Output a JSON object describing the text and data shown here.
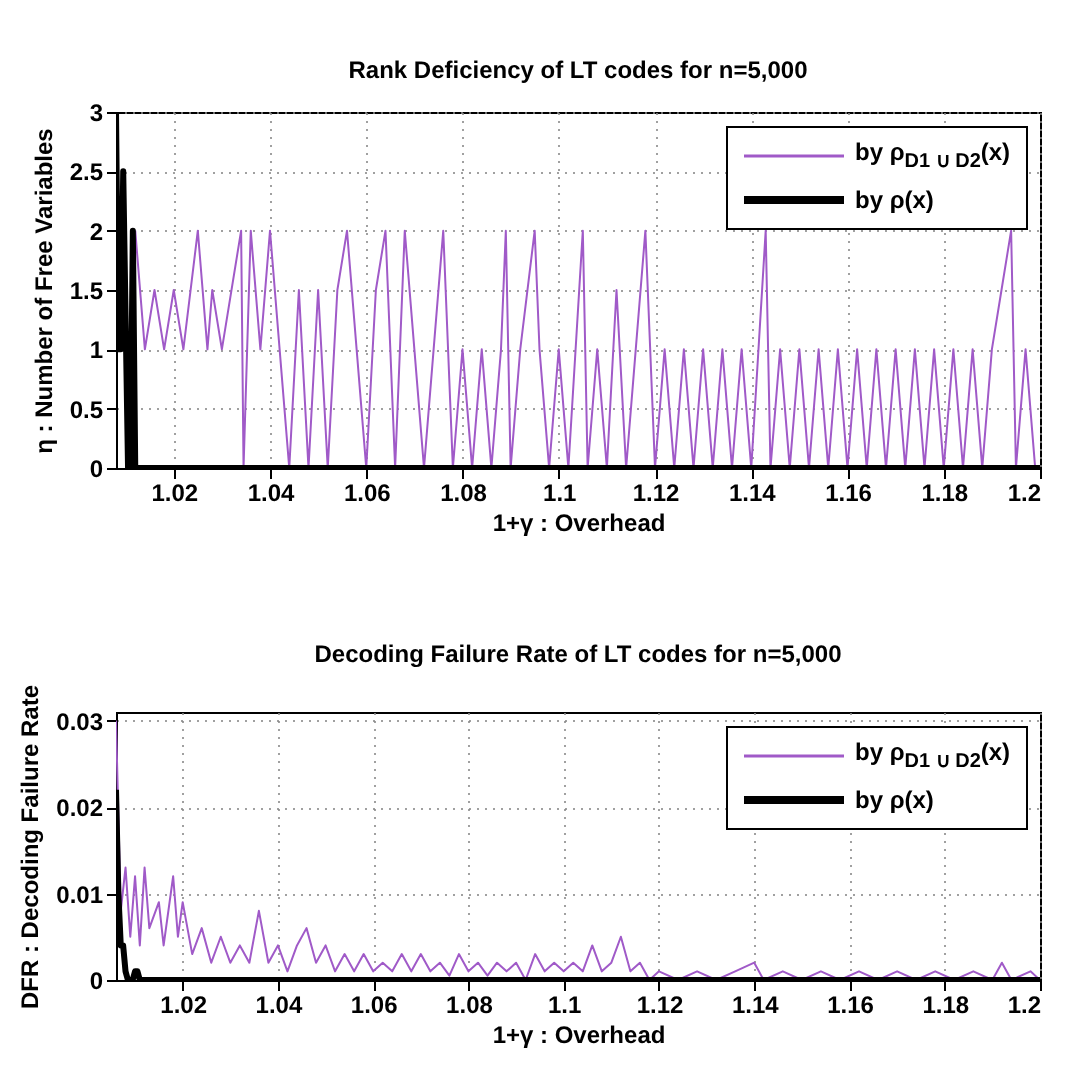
{
  "chart_data": [
    {
      "type": "line",
      "title": "Rank Deficiency of LT codes  for  n=5,000",
      "xlabel": "1+γ : Overhead",
      "ylabel": "η : Number of Free Variables",
      "xlim": [
        1.008,
        1.2
      ],
      "xticks": [
        1.02,
        1.04,
        1.06,
        1.08,
        1.1,
        1.12,
        1.14,
        1.16,
        1.18,
        1.2
      ],
      "ylim": [
        0,
        3
      ],
      "yticks": [
        0,
        0.5,
        1,
        1.5,
        2,
        2.5,
        3
      ],
      "grid": true,
      "legend": "top right",
      "series": [
        {
          "name": "by ρ$_{D1 ∪ D2}$(x)",
          "color": "#a05ac8",
          "x": [
            1.012,
            1.014,
            1.016,
            1.018,
            1.02,
            1.022,
            1.025,
            1.027,
            1.028,
            1.03,
            1.034,
            1.0345,
            1.036,
            1.038,
            1.04,
            1.042,
            1.044,
            1.046,
            1.048,
            1.05,
            1.052,
            1.054,
            1.056,
            1.058,
            1.06,
            1.062,
            1.064,
            1.066,
            1.068,
            1.07,
            1.072,
            1.074,
            1.076,
            1.078,
            1.08,
            1.082,
            1.084,
            1.086,
            1.088,
            1.089,
            1.09,
            1.092,
            1.095,
            1.096,
            1.098,
            1.1,
            1.102,
            1.105,
            1.106,
            1.108,
            1.11,
            1.112,
            1.114,
            1.116,
            1.118,
            1.12,
            1.122,
            1.124,
            1.126,
            1.128,
            1.13,
            1.132,
            1.134,
            1.136,
            1.138,
            1.14,
            1.143,
            1.144,
            1.146,
            1.148,
            1.15,
            1.152,
            1.154,
            1.156,
            1.158,
            1.16,
            1.162,
            1.164,
            1.166,
            1.168,
            1.17,
            1.172,
            1.174,
            1.176,
            1.178,
            1.18,
            1.182,
            1.184,
            1.186,
            1.188,
            1.19,
            1.192,
            1.194,
            1.195,
            1.197,
            1.199
          ],
          "values": [
            2,
            1,
            1.5,
            1,
            1.5,
            1,
            2,
            1,
            1.5,
            1,
            2,
            0,
            2,
            1,
            2,
            1,
            0,
            1.5,
            0,
            1.5,
            0,
            1.5,
            2,
            1,
            0,
            1.5,
            2,
            0,
            2,
            1,
            0,
            1,
            2,
            0,
            1,
            0,
            1,
            0,
            1,
            2,
            0,
            1,
            2,
            1,
            0,
            1,
            0,
            2,
            0,
            1,
            0,
            1.5,
            0,
            1,
            2,
            0,
            1,
            0,
            1,
            0,
            1,
            0,
            1,
            0,
            1,
            0,
            2,
            0,
            1,
            0,
            1,
            0,
            1,
            0,
            1,
            0,
            1,
            0,
            1,
            0,
            1,
            0,
            1,
            0,
            1,
            0,
            1,
            0,
            1,
            0,
            1,
            1.5,
            2,
            0,
            1,
            0
          ]
        },
        {
          "name": "by ρ(x)",
          "color": "#000000",
          "x": [
            1.008,
            1.0085,
            1.009,
            1.0095,
            1.0105,
            1.011,
            1.0115,
            1.012,
            1.2
          ],
          "values": [
            3,
            1,
            1,
            2.5,
            0,
            0,
            2,
            0,
            0
          ]
        }
      ]
    },
    {
      "type": "line",
      "title": "Decoding Failure Rate of LT codes for n=5,000",
      "xlabel": "1+γ : Overhead",
      "ylabel": "DFR : Decoding Failure Rate",
      "xlim": [
        1.006,
        1.2
      ],
      "xticks": [
        1.02,
        1.04,
        1.06,
        1.08,
        1.1,
        1.12,
        1.14,
        1.16,
        1.18,
        1.2
      ],
      "ylim": [
        0,
        0.031
      ],
      "yticks": [
        0,
        0.01,
        0.02,
        0.03
      ],
      "grid": true,
      "legend": "top right",
      "series": [
        {
          "name": "by ρ$_{D1 ∪ D2}$(x)",
          "color": "#a05ac8",
          "x": [
            1.006,
            1.007,
            1.008,
            1.009,
            1.01,
            1.011,
            1.012,
            1.013,
            1.015,
            1.016,
            1.018,
            1.019,
            1.02,
            1.022,
            1.024,
            1.026,
            1.028,
            1.03,
            1.032,
            1.034,
            1.036,
            1.038,
            1.04,
            1.042,
            1.044,
            1.046,
            1.048,
            1.05,
            1.052,
            1.054,
            1.056,
            1.058,
            1.06,
            1.062,
            1.064,
            1.066,
            1.068,
            1.07,
            1.072,
            1.074,
            1.076,
            1.078,
            1.08,
            1.082,
            1.084,
            1.086,
            1.088,
            1.09,
            1.092,
            1.094,
            1.096,
            1.098,
            1.1,
            1.102,
            1.104,
            1.106,
            1.108,
            1.11,
            1.112,
            1.114,
            1.116,
            1.118,
            1.12,
            1.124,
            1.128,
            1.132,
            1.136,
            1.14,
            1.142,
            1.146,
            1.15,
            1.154,
            1.158,
            1.162,
            1.166,
            1.17,
            1.174,
            1.178,
            1.182,
            1.186,
            1.19,
            1.192,
            1.194,
            1.198,
            1.2
          ],
          "values": [
            0.03,
            0.008,
            0.013,
            0.005,
            0.012,
            0.004,
            0.013,
            0.006,
            0.009,
            0.004,
            0.012,
            0.005,
            0.009,
            0.003,
            0.006,
            0.002,
            0.005,
            0.002,
            0.004,
            0.002,
            0.008,
            0.002,
            0.004,
            0.001,
            0.004,
            0.006,
            0.002,
            0.004,
            0.001,
            0.003,
            0.001,
            0.003,
            0.001,
            0.002,
            0.001,
            0.003,
            0.001,
            0.003,
            0.001,
            0.002,
            0.0005,
            0.003,
            0.001,
            0.002,
            0.0005,
            0.002,
            0.001,
            0.002,
            0,
            0.003,
            0.001,
            0.002,
            0.001,
            0.002,
            0.001,
            0.004,
            0.001,
            0.002,
            0.005,
            0.001,
            0.002,
            0,
            0.001,
            0,
            0.001,
            0,
            0.001,
            0.002,
            0,
            0.001,
            0,
            0.001,
            0,
            0.001,
            0,
            0.001,
            0,
            0.001,
            0,
            0.001,
            0,
            0.002,
            0,
            0.001,
            0
          ]
        },
        {
          "name": "by ρ(x)",
          "color": "#000000",
          "x": [
            1.006,
            1.0065,
            1.007,
            1.0075,
            1.008,
            1.0085,
            1.0095,
            1.01,
            1.0105,
            1.011,
            1.2
          ],
          "values": [
            0.022,
            0.01,
            0.004,
            0.004,
            0.001,
            0,
            0,
            0.001,
            0.001,
            0,
            0
          ]
        }
      ]
    }
  ]
}
